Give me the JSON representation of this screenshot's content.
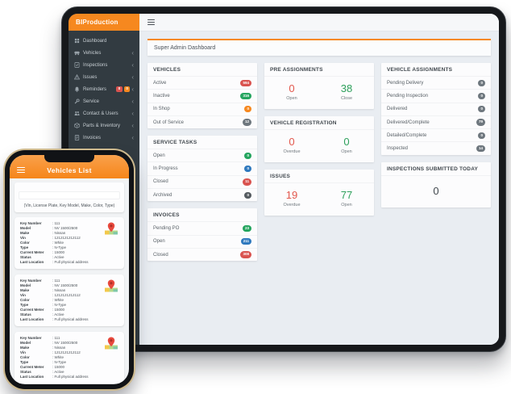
{
  "colors": {
    "accent": "#F6881F",
    "sidebar_bg": "#323B41",
    "badge_red": "#D9534F",
    "badge_green": "#25A55F",
    "badge_blue": "#2F79BE",
    "badge_orange": "#F6881F",
    "badge_gray": "#6E777E",
    "metric_red": "#E2574C",
    "metric_green": "#2EA05C"
  },
  "tablet": {
    "brand": {
      "prefix": "BI",
      "rest": "Production"
    },
    "page_title": "Super Admin Dashboard",
    "sidebar_items": [
      {
        "label": "Dashboard",
        "icon": "dashboard-icon",
        "chevron": false
      },
      {
        "label": "Vehicles",
        "icon": "vehicles-icon",
        "chevron": true
      },
      {
        "label": "Inspections",
        "icon": "inspections-icon",
        "chevron": true
      },
      {
        "label": "Issues",
        "icon": "issues-icon",
        "chevron": true
      },
      {
        "label": "Reminders",
        "icon": "reminders-icon",
        "chevron": true,
        "badges": [
          {
            "text": "0",
            "color": "#D9534F"
          },
          {
            "text": "0",
            "color": "#F6881F"
          }
        ]
      },
      {
        "label": "Service",
        "icon": "service-icon",
        "chevron": true
      },
      {
        "label": "Contact & Users",
        "icon": "users-icon",
        "chevron": true
      },
      {
        "label": "Parts & Inventory",
        "icon": "parts-icon",
        "chevron": true
      },
      {
        "label": "Invoices",
        "icon": "invoices-icon",
        "chevron": true
      }
    ],
    "panels": {
      "vehicles": {
        "title": "VEHICLES",
        "rows": [
          {
            "label": "Active",
            "value": "594",
            "color": "#D9534F"
          },
          {
            "label": "Inactive",
            "value": "316",
            "color": "#25A55F"
          },
          {
            "label": "In Shop",
            "value": "0",
            "color": "#F6881F"
          },
          {
            "label": "Out of Service",
            "value": "12",
            "color": "#6E777E"
          }
        ]
      },
      "service_tasks": {
        "title": "SERVICE TASKS",
        "rows": [
          {
            "label": "Open",
            "value": "0",
            "color": "#25A55F"
          },
          {
            "label": "In Progress",
            "value": "0",
            "color": "#2F79BE"
          },
          {
            "label": "Closed",
            "value": "11",
            "color": "#D9534F"
          },
          {
            "label": "Archived",
            "value": "0",
            "color": "#555B60"
          }
        ]
      },
      "invoices": {
        "title": "INVOICES",
        "rows": [
          {
            "label": "Pending PO",
            "value": "23",
            "color": "#25A55F"
          },
          {
            "label": "Open",
            "value": "211",
            "color": "#2F79BE"
          },
          {
            "label": "Closed",
            "value": "308",
            "color": "#D9534F"
          }
        ]
      },
      "pre_assignments": {
        "title": "PRE ASSIGNMENTS",
        "metrics": [
          {
            "value": "0",
            "label": "Open",
            "color": "#E2574C"
          },
          {
            "value": "38",
            "label": "Close",
            "color": "#2EA05C"
          }
        ]
      },
      "vehicle_registration": {
        "title": "VEHICLE REGISTRATION",
        "metrics": [
          {
            "value": "0",
            "label": "Overdue",
            "color": "#E2574C"
          },
          {
            "value": "0",
            "label": "Open",
            "color": "#2EA05C"
          }
        ]
      },
      "issues": {
        "title": "ISSUES",
        "metrics": [
          {
            "value": "19",
            "label": "Overdue",
            "color": "#E2574C"
          },
          {
            "value": "77",
            "label": "Open",
            "color": "#2EA05C"
          }
        ]
      },
      "vehicle_assignments": {
        "title": "VEHICLE ASSIGNMENTS",
        "rows": [
          {
            "label": "Pending Delivery",
            "value": "0",
            "color": "#6E777E"
          },
          {
            "label": "Pending Inspection",
            "value": "0",
            "color": "#6E777E"
          },
          {
            "label": "Delivered",
            "value": "0",
            "color": "#6E777E"
          },
          {
            "label": "Delivered/Complete",
            "value": "79",
            "color": "#6E777E"
          },
          {
            "label": "Detailed/Complete",
            "value": "0",
            "color": "#6E777E"
          },
          {
            "label": "Inspected",
            "value": "14",
            "color": "#6E777E"
          }
        ]
      },
      "inspections_today": {
        "title": "INSPECTIONS SUBMITTED TODAY",
        "value": "0"
      }
    }
  },
  "phone": {
    "title": "Vehicles List",
    "search_hint": "(Vin, License Plate, Key Model, Make, Color, Type)",
    "cards": [
      {
        "fields": [
          {
            "label": "Key Number",
            "value": "111"
          },
          {
            "label": "Model",
            "value": "NV 1500/2500"
          },
          {
            "label": "Make",
            "value": "Nissan"
          },
          {
            "label": "Vin",
            "value": "1212121212112"
          },
          {
            "label": "Color",
            "value": "White"
          },
          {
            "label": "Type",
            "value": "N-Type"
          },
          {
            "label": "Current Meter",
            "value": "15000"
          },
          {
            "label": "Status",
            "value": "Active"
          },
          {
            "label": "Last Location",
            "value": "Full physical address"
          }
        ]
      },
      {
        "fields": [
          {
            "label": "Key Number",
            "value": "111"
          },
          {
            "label": "Model",
            "value": "NV 1500/2500"
          },
          {
            "label": "Make",
            "value": "Nissan"
          },
          {
            "label": "Vin",
            "value": "1212121212112"
          },
          {
            "label": "Color",
            "value": "White"
          },
          {
            "label": "Type",
            "value": "N-Type"
          },
          {
            "label": "Current Meter",
            "value": "15000"
          },
          {
            "label": "Status",
            "value": "Active"
          },
          {
            "label": "Last Location",
            "value": "Full physical address"
          }
        ]
      },
      {
        "fields": [
          {
            "label": "Key Number",
            "value": "111"
          },
          {
            "label": "Model",
            "value": "NV 1500/2500"
          },
          {
            "label": "Make",
            "value": "Nissan"
          },
          {
            "label": "Vin",
            "value": "1212121212112"
          },
          {
            "label": "Color",
            "value": "White"
          },
          {
            "label": "Type",
            "value": "N-Type"
          },
          {
            "label": "Current Meter",
            "value": "15000"
          },
          {
            "label": "Status",
            "value": "Active"
          },
          {
            "label": "Last Location",
            "value": "Full physical address"
          }
        ]
      }
    ]
  }
}
